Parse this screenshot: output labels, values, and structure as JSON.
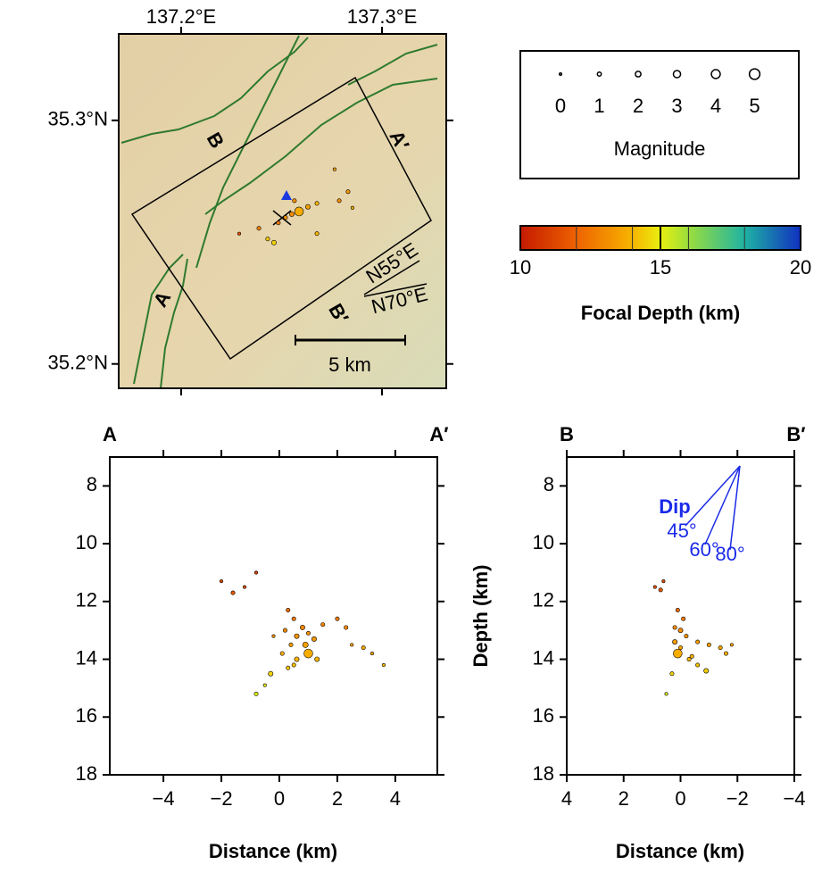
{
  "chart_data": [
    {
      "type": "map",
      "xlim": [
        137.1689,
        137.332
      ],
      "ylim": [
        35.19,
        35.3355
      ],
      "xticks": [
        {
          "value": 137.2,
          "label": "137.2°E"
        },
        {
          "value": 137.3,
          "label": "137.3°E"
        }
      ],
      "yticks": [
        {
          "value": 35.2,
          "label": "35.2°N"
        },
        {
          "value": 35.3,
          "label": "35.3°N"
        }
      ],
      "labels": [
        "A",
        "A′",
        "B",
        "B′",
        "N55°E",
        "N70°E",
        "5 km"
      ],
      "x": [
        137.2587,
        137.2551,
        137.252,
        137.2484,
        137.2631,
        137.2676,
        137.2787,
        137.2831,
        137.2431,
        137.2462,
        137.2676,
        137.2289,
        137.2764,
        137.2853,
        137.2564,
        137.2387
      ],
      "values": [
        35.2626,
        35.2615,
        35.2601,
        35.2579,
        35.2645,
        35.2659,
        35.267,
        35.2707,
        35.2513,
        35.2498,
        35.2535,
        35.2535,
        35.2799,
        35.2641,
        35.267,
        35.2557
      ],
      "depths": [
        13.8,
        13,
        13.2,
        12.5,
        13.5,
        14,
        13,
        13.2,
        14.3,
        14.5,
        14,
        11.5,
        13.6,
        13.8,
        13,
        12.8
      ],
      "magnitudes": [
        4,
        1.5,
        1,
        1,
        1.5,
        1,
        1,
        1,
        1,
        1.5,
        1,
        0.5,
        0.5,
        0.5,
        1,
        1
      ]
    },
    {
      "type": "size-legend",
      "title": "Magnitude",
      "magnitudes": [
        0,
        1,
        2,
        3,
        4,
        5
      ]
    },
    {
      "type": "colorbar",
      "title": "Focal Depth (km)",
      "xlim": [
        10,
        20
      ],
      "xticks": [
        10,
        15,
        20
      ],
      "colormap": [
        {
          "value": 10,
          "color": "#c41a00"
        },
        {
          "value": 12,
          "color": "#ee6200"
        },
        {
          "value": 14,
          "color": "#f7b400"
        },
        {
          "value": 15,
          "color": "#e9ef10"
        },
        {
          "value": 16,
          "color": "#9bde3c"
        },
        {
          "value": 18,
          "color": "#1fb3a3"
        },
        {
          "value": 20,
          "color": "#1030c0"
        }
      ]
    },
    {
      "type": "scatter",
      "ends": [
        "A",
        "A′"
      ],
      "xlabel": "Distance (km)",
      "xlim": [
        -5.85,
        5.45
      ],
      "ylim": [
        18,
        7
      ],
      "xticks": [
        {
          "value": -4,
          "label": "−4"
        },
        {
          "value": -2,
          "label": "−2"
        },
        0,
        2,
        4
      ],
      "yticks": [
        8,
        10,
        12,
        14,
        16,
        18
      ],
      "x": [
        -2.0,
        -1.6,
        -0.8,
        -1.2,
        0.3,
        0.5,
        0.8,
        0.2,
        0.6,
        1.0,
        1.2,
        0.4,
        0.9,
        0.1,
        0.6,
        1.0,
        1.3,
        2.0,
        2.3,
        2.5,
        2.9,
        3.2,
        3.6,
        -0.3,
        0.3,
        -0.8,
        -0.5,
        0.5,
        1.5,
        -0.2
      ],
      "values": [
        11.3,
        11.7,
        11.0,
        11.5,
        12.3,
        12.6,
        12.9,
        13.0,
        13.2,
        13.1,
        13.3,
        13.5,
        13.5,
        13.8,
        14.0,
        13.8,
        14.0,
        12.6,
        12.9,
        13.5,
        13.6,
        13.8,
        14.2,
        14.5,
        14.3,
        15.2,
        14.9,
        14.2,
        12.8,
        13.2
      ],
      "magnitudes": [
        0.5,
        1,
        0.5,
        0.5,
        1,
        1,
        1.5,
        1,
        1.5,
        1,
        1.5,
        1,
        2,
        1,
        1.5,
        4,
        1.5,
        1,
        1,
        0.5,
        1,
        0.5,
        0.5,
        1.5,
        1,
        1,
        0.5,
        1,
        1,
        0.5
      ]
    },
    {
      "type": "scatter",
      "ends": [
        "B",
        "B′"
      ],
      "xlabel": "Distance (km)",
      "ylabel": "Depth (km)",
      "annotations": [
        "Dip",
        "45°",
        "60°",
        "80°"
      ],
      "xlim": [
        4,
        -4
      ],
      "ylim": [
        18,
        7
      ],
      "xticks": [
        4,
        2,
        0,
        {
          "value": -2,
          "label": "−2"
        },
        {
          "value": -4,
          "label": "−4"
        }
      ],
      "yticks": [
        8,
        10,
        12,
        14,
        16,
        18
      ],
      "x": [
        0.7,
        0.9,
        0.6,
        0.1,
        -0.1,
        0.0,
        -0.2,
        0.2,
        0.0,
        0.1,
        -0.4,
        -0.6,
        -1.0,
        -1.4,
        -1.8,
        -1.6,
        -0.9,
        -0.6,
        0.3,
        0.5,
        -0.3,
        0.2
      ],
      "values": [
        11.6,
        11.5,
        11.3,
        12.3,
        12.6,
        13.0,
        13.2,
        13.4,
        13.6,
        13.8,
        13.9,
        13.4,
        13.5,
        13.6,
        13.5,
        13.8,
        14.4,
        14.2,
        14.5,
        15.2,
        14.0,
        12.9
      ],
      "magnitudes": [
        1,
        0.5,
        0.5,
        1,
        1,
        1.5,
        1,
        1.5,
        1,
        4,
        1,
        1,
        1,
        1,
        0.5,
        1,
        1.5,
        1,
        1,
        0.5,
        1,
        1
      ]
    }
  ]
}
